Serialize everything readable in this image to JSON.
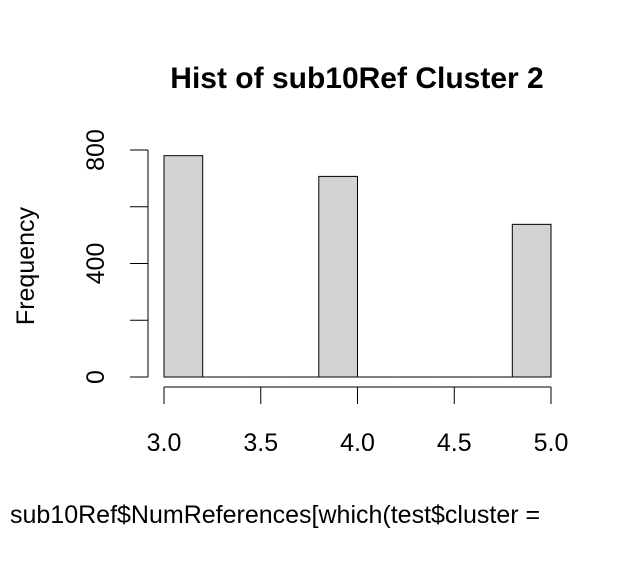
{
  "chart_data": {
    "type": "bar",
    "title": "Hist of sub10Ref Cluster 2",
    "xlabel": "sub10Ref$NumReferences[which(test$cluster =",
    "ylabel": "Frequency",
    "bins": [
      {
        "from": 3.0,
        "to": 3.2,
        "count": 780
      },
      {
        "from": 3.2,
        "to": 3.4,
        "count": 0
      },
      {
        "from": 3.4,
        "to": 3.6,
        "count": 0
      },
      {
        "from": 3.6,
        "to": 3.8,
        "count": 0
      },
      {
        "from": 3.8,
        "to": 4.0,
        "count": 707
      },
      {
        "from": 4.0,
        "to": 4.2,
        "count": 0
      },
      {
        "from": 4.2,
        "to": 4.4,
        "count": 0
      },
      {
        "from": 4.4,
        "to": 4.6,
        "count": 0
      },
      {
        "from": 4.6,
        "to": 4.8,
        "count": 0
      },
      {
        "from": 4.8,
        "to": 5.0,
        "count": 538
      }
    ],
    "x_ticks": [
      "3.0",
      "3.5",
      "4.0",
      "4.5",
      "5.0"
    ],
    "y_ticks": [
      0,
      200,
      400,
      600,
      800
    ],
    "y_tick_labels": [
      "0",
      "",
      "400",
      "",
      "800"
    ],
    "xlim": [
      3.0,
      5.0
    ],
    "ylim": [
      0,
      800
    ],
    "grid": false,
    "colors": {
      "bar_fill": "#d3d3d3",
      "bar_stroke": "#000000"
    }
  }
}
